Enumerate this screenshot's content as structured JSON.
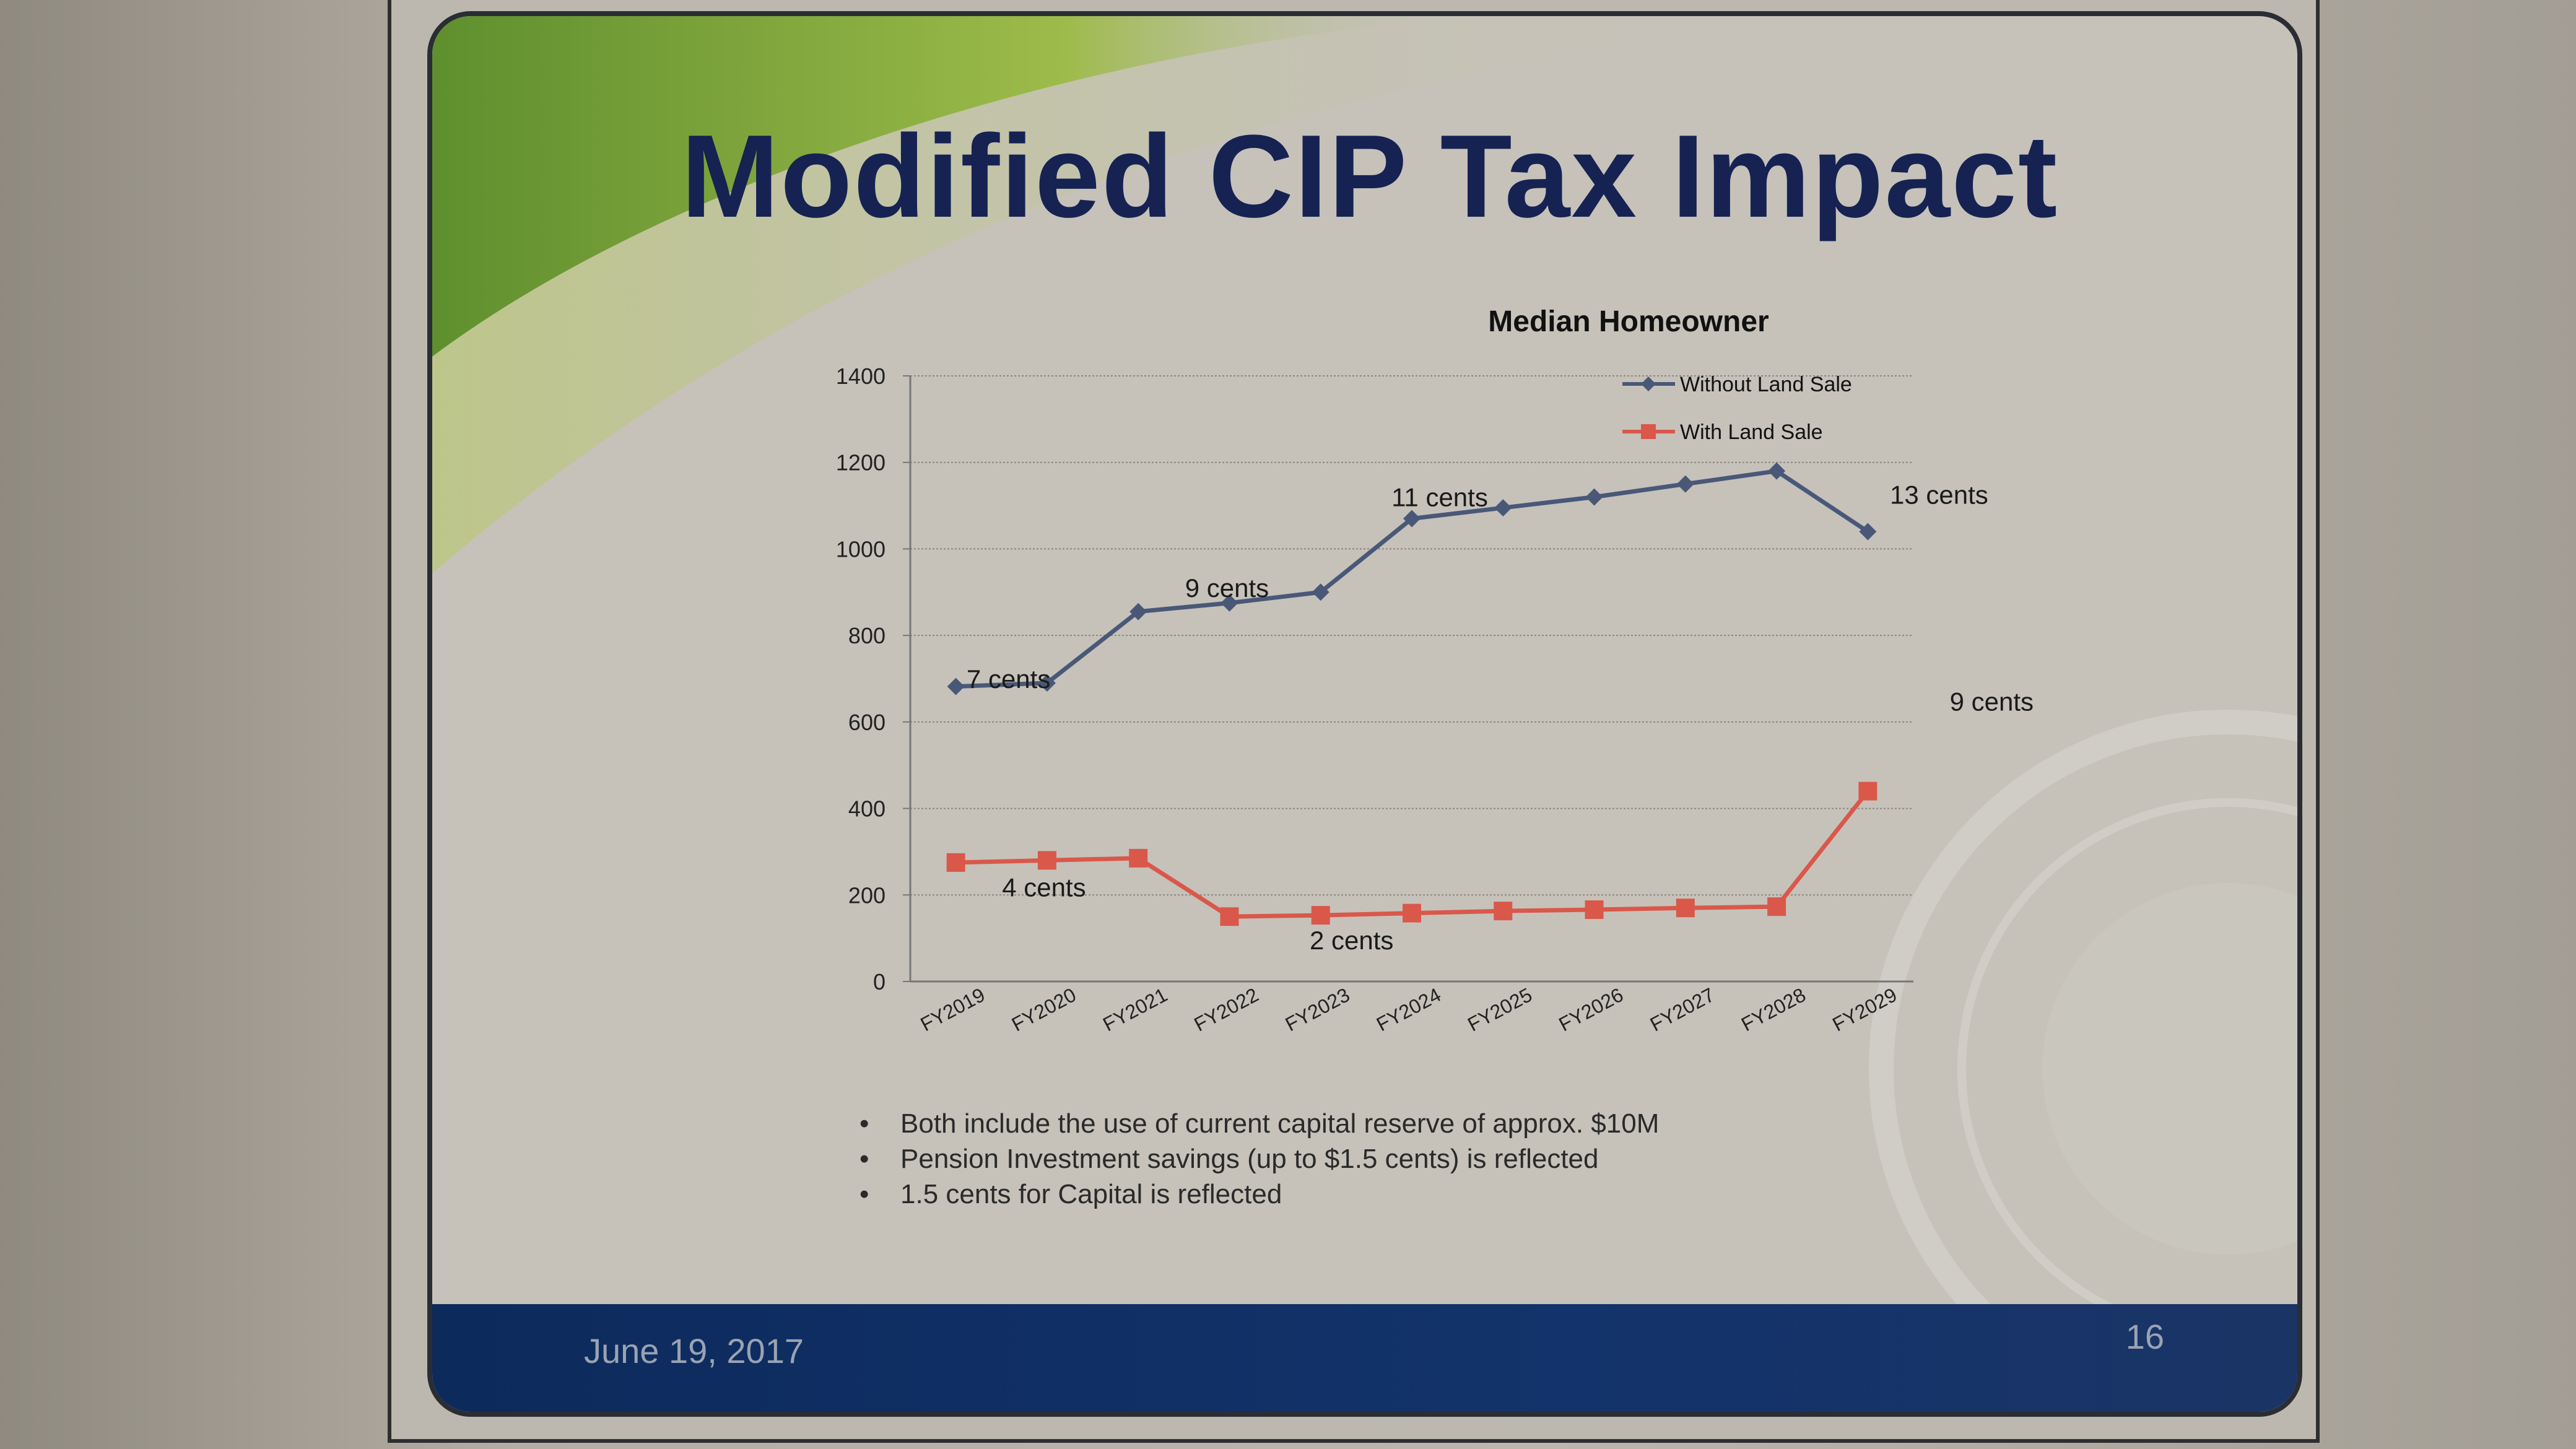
{
  "slide": {
    "title": "Modified CIP Tax Impact",
    "footer_date": "June 19, 2017",
    "page_number": "16",
    "bullets": [
      "Both include the use of current capital reserve of approx. $10M",
      "Pension Investment savings (up to $1.5 cents) is reflected",
      "1.5 cents for Capital is reflected"
    ]
  },
  "colors": {
    "title": "#162252",
    "series_without": "#4a5878",
    "series_with": "#d9584a",
    "footer": "#12336b",
    "accent_green": "#7eaa3a"
  },
  "chart_data": {
    "type": "line",
    "title": "Median Homeowner",
    "categories": [
      "FY2019",
      "FY2020",
      "FY2021",
      "FY2022",
      "FY2023",
      "FY2024",
      "FY2025",
      "FY2026",
      "FY2027",
      "FY2028",
      "FY2029"
    ],
    "ylim": [
      0,
      1400
    ],
    "yticks": [
      0,
      200,
      400,
      600,
      800,
      1000,
      1200,
      1400
    ],
    "grid": true,
    "legend_position": "top-right",
    "series": [
      {
        "name": "Without Land Sale",
        "marker": "diamond",
        "values": [
          682,
          690,
          855,
          875,
          900,
          1070,
          1095,
          1120,
          1150,
          1180,
          1040
        ]
      },
      {
        "name": "With Land Sale",
        "marker": "square",
        "values": [
          275,
          280,
          285,
          150,
          153,
          158,
          163,
          166,
          170,
          173,
          440
        ]
      }
    ],
    "annotations": [
      {
        "text": "7 cents",
        "series": 0,
        "at": "FY2020"
      },
      {
        "text": "9 cents",
        "series": 0,
        "at": "FY2022"
      },
      {
        "text": "11 cents",
        "series": 0,
        "at": "FY2024"
      },
      {
        "text": "13 cents",
        "series": 0,
        "at": "FY2029"
      },
      {
        "text": "4 cents",
        "series": 1,
        "at": "FY2020"
      },
      {
        "text": "2 cents",
        "series": 1,
        "at": "FY2023"
      },
      {
        "text": "9 cents",
        "series": 1,
        "at": "FY2029"
      }
    ]
  }
}
